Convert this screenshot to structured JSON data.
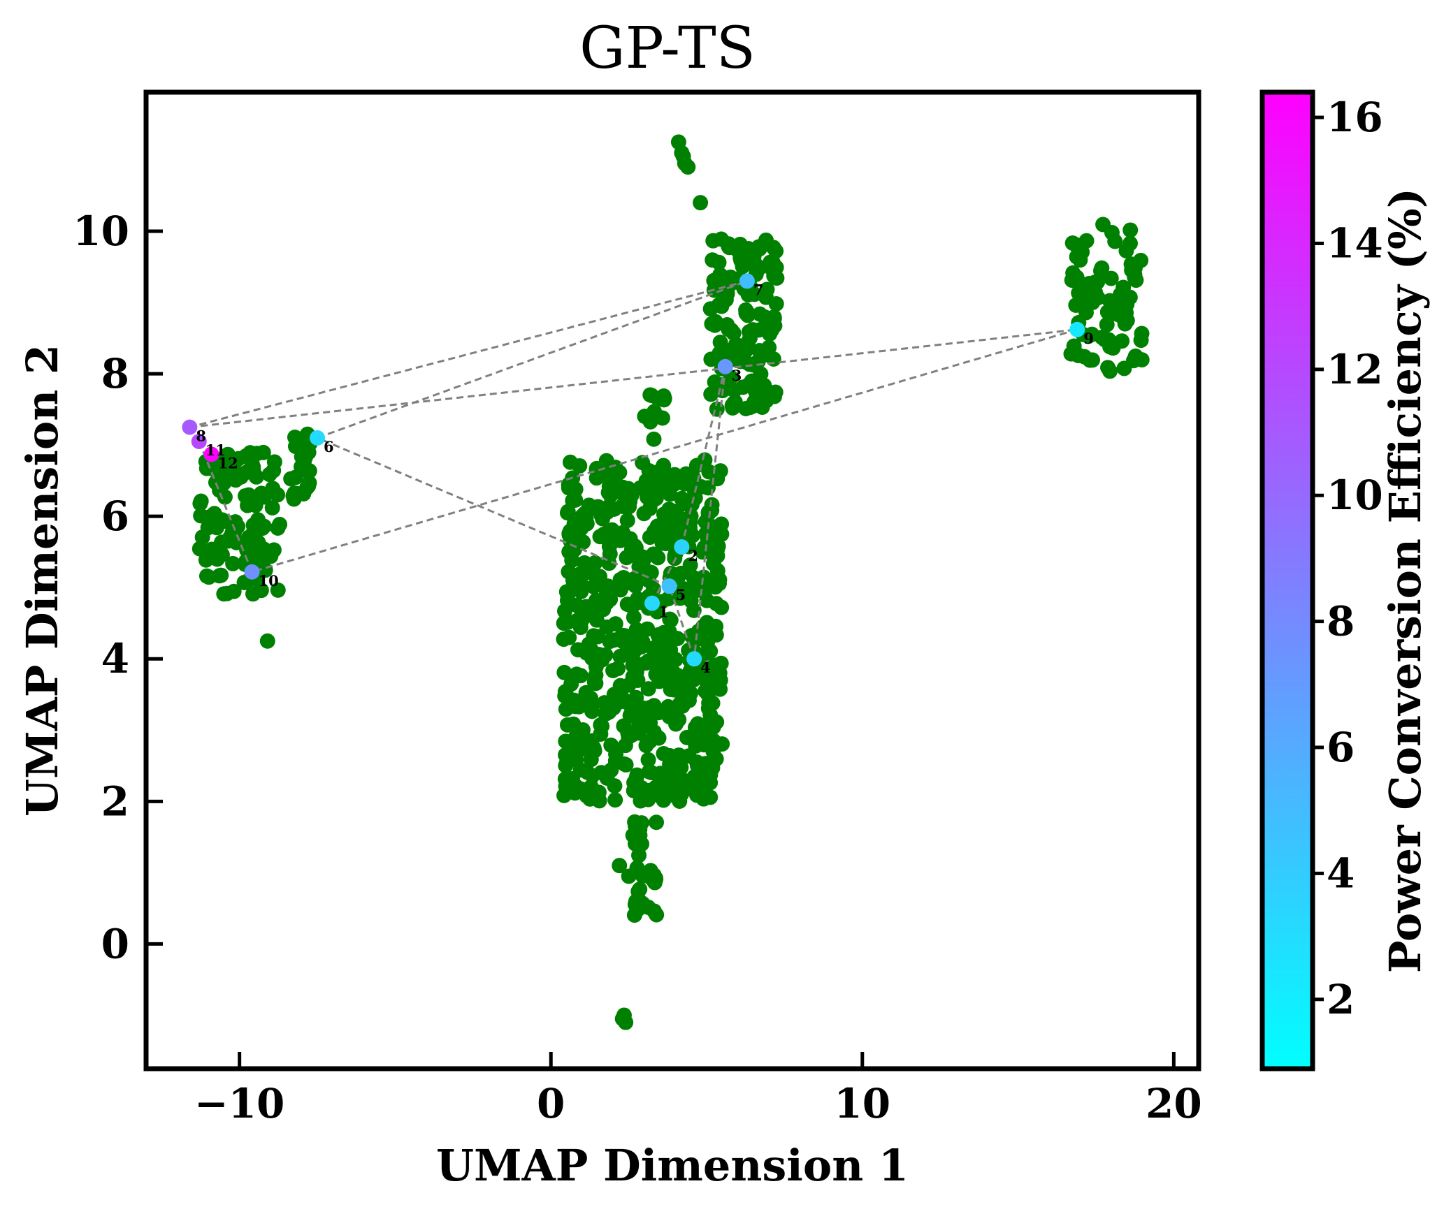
{
  "chart_data": {
    "type": "scatter",
    "title": "GP-TS",
    "xlabel": "UMAP Dimension 1",
    "ylabel": "UMAP Dimension 2",
    "xlim": [
      -13.0,
      20.8
    ],
    "ylim": [
      -1.75,
      11.95
    ],
    "xticks": [
      -10,
      0,
      10,
      20
    ],
    "xtick_labels": [
      "−10",
      "0",
      "10",
      "20"
    ],
    "yticks": [
      0,
      2,
      4,
      6,
      8,
      10
    ],
    "ytick_labels": [
      "0",
      "2",
      "4",
      "6",
      "8",
      "10"
    ],
    "grid": false,
    "background_color": "#008000",
    "background_clusters": [
      {
        "x0": -11.3,
        "x1": -8.7,
        "y0": 4.9,
        "y1": 6.9,
        "n": 120
      },
      {
        "x0": -8.4,
        "x1": -7.6,
        "y0": 6.2,
        "y1": 7.2,
        "n": 25
      },
      {
        "x0": 0.4,
        "x1": 5.5,
        "y0": 2.0,
        "y1": 6.8,
        "n": 600
      },
      {
        "x0": 2.6,
        "x1": 3.4,
        "y0": 0.4,
        "y1": 1.9,
        "n": 35
      },
      {
        "x0": 5.1,
        "x1": 7.3,
        "y0": 7.5,
        "y1": 9.9,
        "n": 140
      },
      {
        "x0": 3.0,
        "x1": 3.7,
        "y0": 7.0,
        "y1": 7.8,
        "n": 12
      },
      {
        "x0": 16.7,
        "x1": 19.0,
        "y0": 8.0,
        "y1": 10.1,
        "n": 80
      }
    ],
    "background_points": [
      {
        "x": 2.3,
        "y": -1.05
      },
      {
        "x": 2.4,
        "y": -1.1
      },
      {
        "x": 2.35,
        "y": -1.0
      },
      {
        "x": 4.1,
        "y": 11.25
      },
      {
        "x": 4.2,
        "y": 11.1
      },
      {
        "x": 4.3,
        "y": 10.95
      },
      {
        "x": 4.4,
        "y": 10.9
      },
      {
        "x": 4.25,
        "y": 11.05
      },
      {
        "x": 4.8,
        "y": 10.4
      },
      {
        "x": -9.1,
        "y": 4.25
      },
      {
        "x": 2.2,
        "y": 1.1
      },
      {
        "x": 2.5,
        "y": 0.95
      }
    ],
    "selected_series": [
      {
        "label": "1",
        "x": 3.25,
        "y": 4.78,
        "pce": 3.3
      },
      {
        "label": "2",
        "x": 4.2,
        "y": 5.57,
        "pce": 3.5
      },
      {
        "label": "3",
        "x": 5.6,
        "y": 8.1,
        "pce": 7.3
      },
      {
        "label": "4",
        "x": 4.6,
        "y": 4.0,
        "pce": 3.2
      },
      {
        "label": "5",
        "x": 3.8,
        "y": 5.02,
        "pce": 4.6
      },
      {
        "label": "6",
        "x": -7.5,
        "y": 7.1,
        "pce": 3.1
      },
      {
        "label": "7",
        "x": 6.3,
        "y": 9.3,
        "pce": 4.9
      },
      {
        "label": "8",
        "x": -11.6,
        "y": 7.25,
        "pce": 11.0
      },
      {
        "label": "9",
        "x": 16.9,
        "y": 8.62,
        "pce": 2.3
      },
      {
        "label": "10",
        "x": -9.6,
        "y": 5.22,
        "pce": 7.6
      },
      {
        "label": "11",
        "x": -11.3,
        "y": 7.05,
        "pce": 12.0
      },
      {
        "label": "12",
        "x": -10.9,
        "y": 6.87,
        "pce": 16.3
      }
    ],
    "path_style": {
      "color": "#808080",
      "dash": "dashed"
    },
    "colorbar": {
      "label": "Power Conversion Efficiency (%)",
      "range": [
        0.9,
        16.4
      ],
      "ticks": [
        2,
        4,
        6,
        8,
        10,
        12,
        14,
        16
      ],
      "tick_labels": [
        "2",
        "4",
        "6",
        "8",
        "10",
        "12",
        "14",
        "16"
      ],
      "colormap": [
        "#00ffff",
        "#ff00ff"
      ]
    }
  }
}
